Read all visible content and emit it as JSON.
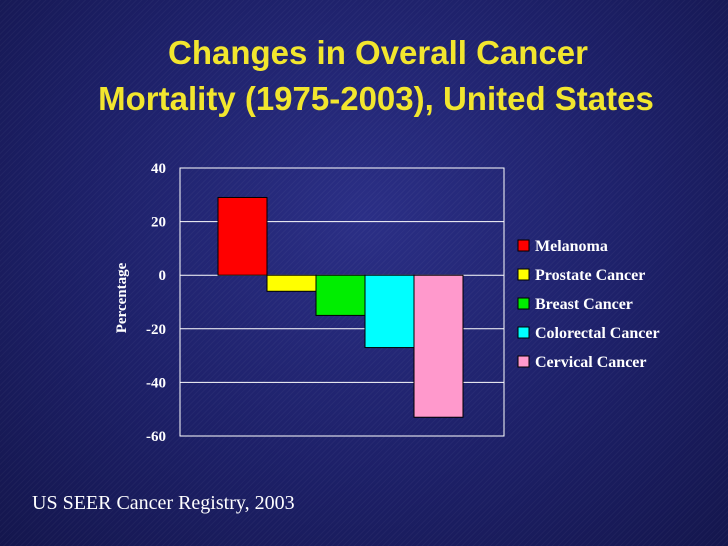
{
  "slide": {
    "title_line1": "Changes in Overall Cancer",
    "title_line2": "Mortality (1975-2003), United States",
    "source": "US SEER Cancer Registry, 2003"
  },
  "chart_data": {
    "type": "bar",
    "title": "Changes in Overall Cancer Mortality (1975-2003), United States",
    "xlabel": "",
    "ylabel": "Percentage",
    "ylim": [
      -60,
      40
    ],
    "yticks": [
      40,
      20,
      0,
      -20,
      -40,
      -60
    ],
    "grid": true,
    "legend_position": "right",
    "series": [
      {
        "name": "Melanoma",
        "value": 29,
        "color": "#ff0000"
      },
      {
        "name": "Prostate Cancer",
        "value": -6,
        "color": "#ffff00"
      },
      {
        "name": "Breast Cancer",
        "value": -15,
        "color": "#00ee00"
      },
      {
        "name": "Colorectal Cancer",
        "value": -27,
        "color": "#00ffff"
      },
      {
        "name": "Cervical Cancer",
        "value": -53,
        "color": "#ff99cc"
      }
    ]
  }
}
